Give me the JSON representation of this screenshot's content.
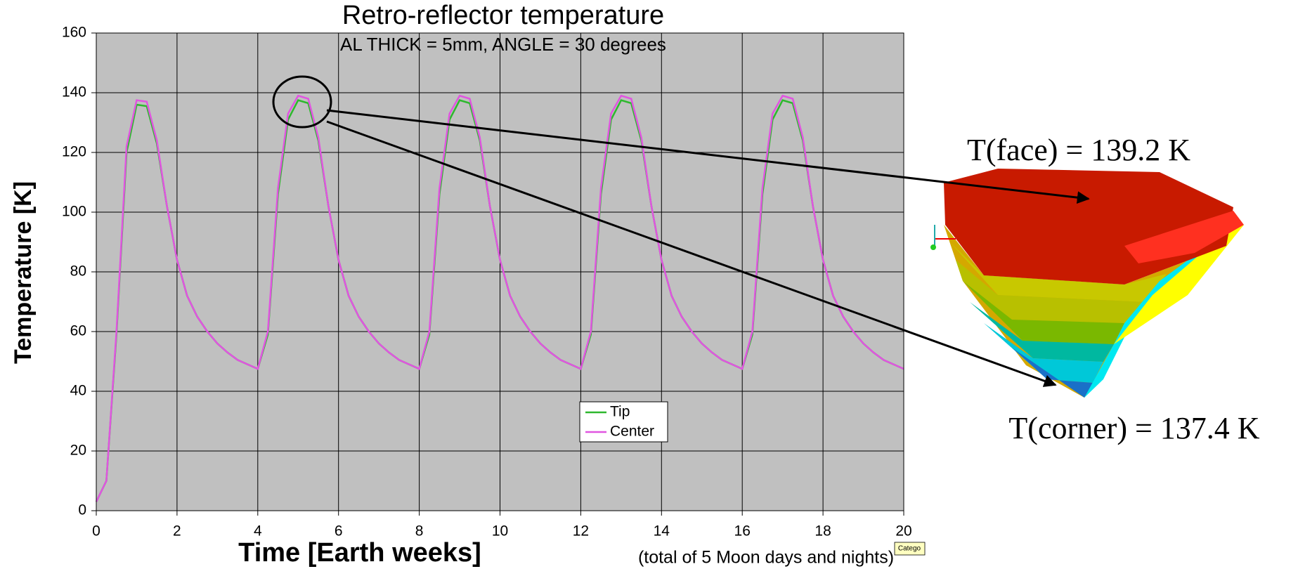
{
  "chart_data": {
    "type": "line",
    "title": "Retro-reflector temperature",
    "subtitle": "AL THICK =  5mm, ANGLE =  30 degrees",
    "x_label": "Time [Earth weeks]",
    "y_label": "Temperature [K]",
    "note": "(total of 5 Moon days and nights)",
    "tooltip": "Catego",
    "annotations": [
      "T(face) = 139.2 K",
      "T(corner) = 137.4 K"
    ],
    "x": [
      0,
      0.25,
      0.5,
      0.75,
      1,
      1.25,
      1.5,
      1.75,
      2,
      2.25,
      2.5,
      2.75,
      3,
      3.25,
      3.5,
      3.75,
      4,
      4.25,
      4.5,
      4.75,
      5,
      5.25,
      5.5,
      5.75,
      6,
      6.25,
      6.5,
      6.75,
      7,
      7.25,
      7.5,
      7.75,
      8,
      8.25,
      8.5,
      8.75,
      9,
      9.25,
      9.5,
      9.75,
      10,
      10.25,
      10.5,
      10.75,
      11,
      11.25,
      11.5,
      11.75,
      12,
      12.25,
      12.5,
      12.75,
      13,
      13.25,
      13.5,
      13.75,
      14,
      14.25,
      14.5,
      14.75,
      15,
      15.25,
      15.5,
      15.75,
      16,
      16.25,
      16.5,
      16.75,
      17,
      17.25,
      17.5,
      17.75,
      18,
      18.25,
      18.5,
      18.75,
      19,
      19.25,
      19.5,
      19.75,
      20
    ],
    "series": [
      {
        "name": "Tip",
        "color": "#2eb82e",
        "values": [
          3,
          10,
          59,
          120,
          136,
          135.5,
          123,
          102,
          84,
          72,
          65,
          60,
          56,
          53,
          50.5,
          49,
          47.5,
          59,
          106,
          131,
          137.5,
          136.5,
          124,
          102,
          84,
          72,
          65,
          60,
          56,
          53,
          50.5,
          49,
          47.5,
          59,
          106,
          131,
          137.5,
          136.5,
          124,
          102,
          84,
          72,
          65,
          60,
          56,
          53,
          50.5,
          49,
          47.5,
          59,
          106,
          131,
          137.5,
          136.5,
          124,
          102,
          84,
          72,
          65,
          60,
          56,
          53,
          50.5,
          49,
          47.5,
          59,
          106,
          131,
          137.5,
          136.5,
          124,
          102,
          84,
          72,
          65,
          60,
          56,
          53,
          50.5,
          49,
          47.5
        ]
      },
      {
        "name": "Center",
        "color": "#e055e0",
        "values": [
          3,
          10,
          60,
          122,
          137.5,
          137,
          124,
          102,
          84,
          72,
          65,
          60,
          56,
          53,
          50.5,
          49,
          47.5,
          60,
          108,
          133,
          139,
          138,
          125,
          102,
          84,
          72,
          65,
          60,
          56,
          53,
          50.5,
          49,
          47.5,
          60,
          108,
          133,
          139,
          138,
          125,
          102,
          84,
          72,
          65,
          60,
          56,
          53,
          50.5,
          49,
          47.5,
          60,
          108,
          133,
          139,
          138,
          125,
          102,
          84,
          72,
          65,
          60,
          56,
          53,
          50.5,
          49,
          47.5,
          60,
          108,
          133,
          139,
          138,
          125,
          102,
          84,
          72,
          65,
          60,
          56,
          53,
          50.5,
          49,
          47.5
        ]
      }
    ],
    "xlim": [
      0,
      20
    ],
    "xticks": [
      0,
      2,
      4,
      6,
      8,
      10,
      12,
      14,
      16,
      18,
      20
    ],
    "ylim": [
      0,
      160
    ],
    "yticks": [
      0,
      20,
      40,
      60,
      80,
      100,
      120,
      140,
      160
    ],
    "grid": true,
    "plot_background": "#c0c0c0"
  }
}
